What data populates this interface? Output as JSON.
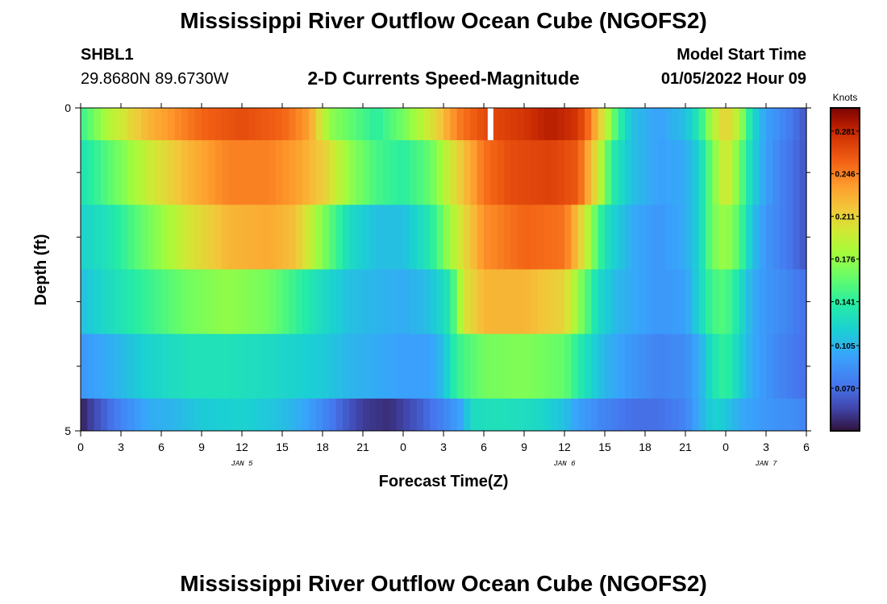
{
  "page": {
    "title": "Mississippi River Outflow Ocean Cube (NGOFS2)",
    "station_id": "SHBL1",
    "station_coords": "29.8680N  89.6730W",
    "subtitle": "2-D Currents Speed-Magnitude",
    "model_start_label": "Model Start Time",
    "model_start_value": "01/05/2022 Hour 09",
    "footer_title": "Mississippi River Outflow Ocean Cube (NGOFS2)"
  },
  "chart_data": {
    "type": "heatmap",
    "title": "2-D Currents Speed-Magnitude",
    "xlabel": "Forecast Time(Z)",
    "ylabel": "Depth (ft)",
    "units": "Knots",
    "x_range_hours": [
      0,
      54
    ],
    "x_tick_hours": [
      0,
      3,
      6,
      9,
      12,
      15,
      18,
      21,
      24,
      27,
      30,
      33,
      36,
      39,
      42,
      45,
      48,
      51,
      54
    ],
    "x_tick_labels": [
      "0",
      "3",
      "6",
      "9",
      "12",
      "15",
      "18",
      "21",
      "0",
      "3",
      "6",
      "9",
      "12",
      "15",
      "18",
      "21",
      "0",
      "3",
      "6"
    ],
    "day_labels": [
      {
        "hour": 12,
        "text": "JAN 5"
      },
      {
        "hour": 36,
        "text": "JAN 6"
      },
      {
        "hour": 51,
        "text": "JAN 7"
      }
    ],
    "y_range": [
      0,
      5
    ],
    "y_tick_labels": [
      {
        "value": 0,
        "text": "0"
      },
      {
        "value": 5,
        "text": "5"
      }
    ],
    "y_minor_ticks": [
      1,
      2,
      3,
      4
    ],
    "colorbar": {
      "min": 0.035,
      "max": 0.3,
      "ticks": [
        0.281,
        0.246,
        0.211,
        0.176,
        0.141,
        0.105,
        0.07
      ],
      "tick_labels": [
        "0.281",
        "0.246",
        "0.211",
        "0.176",
        "0.141",
        "0.105",
        "0.070"
      ]
    },
    "missing": [
      {
        "hour": 30.5,
        "layer": 0
      }
    ],
    "layers": [
      {
        "depth_range": [
          0,
          0.5
        ],
        "keys": [
          [
            0,
            0.145
          ],
          [
            2,
            0.185
          ],
          [
            5,
            0.225
          ],
          [
            9,
            0.255
          ],
          [
            12,
            0.265
          ],
          [
            15,
            0.255
          ],
          [
            17,
            0.235
          ],
          [
            18.5,
            0.175
          ],
          [
            20,
            0.16
          ],
          [
            22,
            0.14
          ],
          [
            24,
            0.165
          ],
          [
            26,
            0.2
          ],
          [
            28,
            0.245
          ],
          [
            30,
            0.265
          ],
          [
            33,
            0.275
          ],
          [
            35,
            0.285
          ],
          [
            37,
            0.275
          ],
          [
            38,
            0.245
          ],
          [
            39,
            0.195
          ],
          [
            40,
            0.145
          ],
          [
            41,
            0.11
          ],
          [
            43,
            0.095
          ],
          [
            45,
            0.11
          ],
          [
            46,
            0.135
          ],
          [
            47,
            0.185
          ],
          [
            48,
            0.215
          ],
          [
            49,
            0.185
          ],
          [
            50,
            0.125
          ],
          [
            51,
            0.095
          ],
          [
            52,
            0.085
          ],
          [
            54,
            0.06
          ]
        ]
      },
      {
        "depth_range": [
          0.5,
          1.5
        ],
        "keys": [
          [
            0,
            0.13
          ],
          [
            2,
            0.155
          ],
          [
            5,
            0.195
          ],
          [
            8,
            0.225
          ],
          [
            11,
            0.245
          ],
          [
            14,
            0.245
          ],
          [
            16,
            0.235
          ],
          [
            18,
            0.215
          ],
          [
            20,
            0.175
          ],
          [
            22,
            0.15
          ],
          [
            24,
            0.14
          ],
          [
            26,
            0.16
          ],
          [
            28,
            0.21
          ],
          [
            30,
            0.25
          ],
          [
            32,
            0.265
          ],
          [
            35,
            0.27
          ],
          [
            37,
            0.26
          ],
          [
            38.5,
            0.2
          ],
          [
            39.5,
            0.14
          ],
          [
            41,
            0.11
          ],
          [
            43,
            0.095
          ],
          [
            45,
            0.1
          ],
          [
            46,
            0.12
          ],
          [
            47,
            0.165
          ],
          [
            48,
            0.205
          ],
          [
            49,
            0.165
          ],
          [
            50,
            0.12
          ],
          [
            51,
            0.095
          ],
          [
            52,
            0.08
          ],
          [
            54,
            0.06
          ]
        ]
      },
      {
        "depth_range": [
          1.5,
          2.5
        ],
        "keys": [
          [
            0,
            0.12
          ],
          [
            2,
            0.13
          ],
          [
            5,
            0.165
          ],
          [
            8,
            0.2
          ],
          [
            11,
            0.225
          ],
          [
            14,
            0.23
          ],
          [
            16,
            0.22
          ],
          [
            18,
            0.17
          ],
          [
            20,
            0.125
          ],
          [
            22,
            0.11
          ],
          [
            24,
            0.11
          ],
          [
            26,
            0.135
          ],
          [
            28,
            0.195
          ],
          [
            30,
            0.24
          ],
          [
            33,
            0.255
          ],
          [
            36,
            0.25
          ],
          [
            37,
            0.22
          ],
          [
            38,
            0.175
          ],
          [
            39,
            0.13
          ],
          [
            41,
            0.1
          ],
          [
            43,
            0.09
          ],
          [
            45,
            0.1
          ],
          [
            46,
            0.12
          ],
          [
            47,
            0.165
          ],
          [
            48,
            0.18
          ],
          [
            49,
            0.155
          ],
          [
            50,
            0.11
          ],
          [
            51,
            0.09
          ],
          [
            52,
            0.08
          ],
          [
            54,
            0.06
          ]
        ]
      },
      {
        "depth_range": [
          2.5,
          3.5
        ],
        "keys": [
          [
            0,
            0.11
          ],
          [
            2,
            0.125
          ],
          [
            5,
            0.145
          ],
          [
            8,
            0.165
          ],
          [
            11,
            0.175
          ],
          [
            14,
            0.165
          ],
          [
            16,
            0.145
          ],
          [
            18,
            0.125
          ],
          [
            20,
            0.11
          ],
          [
            22,
            0.105
          ],
          [
            24,
            0.1
          ],
          [
            26,
            0.11
          ],
          [
            27.5,
            0.135
          ],
          [
            28.5,
            0.2
          ],
          [
            30,
            0.225
          ],
          [
            33,
            0.225
          ],
          [
            36,
            0.21
          ],
          [
            37.5,
            0.16
          ],
          [
            38.5,
            0.125
          ],
          [
            40,
            0.105
          ],
          [
            43,
            0.09
          ],
          [
            45,
            0.095
          ],
          [
            46,
            0.12
          ],
          [
            47,
            0.15
          ],
          [
            48,
            0.155
          ],
          [
            49,
            0.13
          ],
          [
            50,
            0.1
          ],
          [
            51,
            0.09
          ],
          [
            52,
            0.085
          ],
          [
            54,
            0.07
          ]
        ]
      },
      {
        "depth_range": [
          3.5,
          4.5
        ],
        "keys": [
          [
            0,
            0.09
          ],
          [
            2,
            0.1
          ],
          [
            5,
            0.12
          ],
          [
            8,
            0.13
          ],
          [
            11,
            0.13
          ],
          [
            14,
            0.125
          ],
          [
            16,
            0.12
          ],
          [
            18,
            0.115
          ],
          [
            20,
            0.105
          ],
          [
            22,
            0.1
          ],
          [
            24,
            0.095
          ],
          [
            26,
            0.095
          ],
          [
            27,
            0.11
          ],
          [
            28,
            0.145
          ],
          [
            30,
            0.165
          ],
          [
            33,
            0.17
          ],
          [
            36,
            0.16
          ],
          [
            37.5,
            0.13
          ],
          [
            39,
            0.105
          ],
          [
            41,
            0.09
          ],
          [
            43,
            0.08
          ],
          [
            45,
            0.085
          ],
          [
            46,
            0.1
          ],
          [
            47,
            0.13
          ],
          [
            48,
            0.145
          ],
          [
            49,
            0.12
          ],
          [
            50,
            0.1
          ],
          [
            51,
            0.09
          ],
          [
            52,
            0.08
          ],
          [
            54,
            0.07
          ]
        ]
      },
      {
        "depth_range": [
          4.5,
          5.0
        ],
        "keys": [
          [
            0,
            0.04
          ],
          [
            1,
            0.055
          ],
          [
            3,
            0.08
          ],
          [
            5,
            0.1
          ],
          [
            7,
            0.105
          ],
          [
            9,
            0.115
          ],
          [
            12,
            0.12
          ],
          [
            15,
            0.11
          ],
          [
            17,
            0.095
          ],
          [
            19,
            0.07
          ],
          [
            21,
            0.05
          ],
          [
            23,
            0.045
          ],
          [
            25,
            0.06
          ],
          [
            27,
            0.08
          ],
          [
            28.5,
            0.1
          ],
          [
            29,
            0.125
          ],
          [
            31,
            0.13
          ],
          [
            34,
            0.125
          ],
          [
            36,
            0.11
          ],
          [
            37,
            0.095
          ],
          [
            39,
            0.08
          ],
          [
            41,
            0.07
          ],
          [
            43,
            0.07
          ],
          [
            45,
            0.08
          ],
          [
            46,
            0.1
          ],
          [
            47,
            0.12
          ],
          [
            48,
            0.115
          ],
          [
            49,
            0.1
          ],
          [
            51,
            0.09
          ],
          [
            53,
            0.085
          ],
          [
            54,
            0.08
          ]
        ]
      }
    ]
  }
}
